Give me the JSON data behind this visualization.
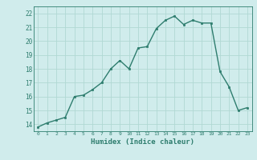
{
  "x": [
    0,
    1,
    2,
    3,
    4,
    5,
    6,
    7,
    8,
    9,
    10,
    11,
    12,
    13,
    14,
    15,
    16,
    17,
    18,
    19,
    20,
    21,
    22,
    23
  ],
  "y": [
    13.8,
    14.1,
    14.3,
    14.5,
    16.0,
    16.1,
    16.5,
    17.0,
    18.0,
    18.6,
    18.0,
    19.5,
    19.6,
    20.9,
    21.5,
    21.8,
    21.2,
    21.5,
    21.3,
    21.3,
    17.8,
    16.7,
    15.0,
    15.2
  ],
  "line_color": "#2e7d6e",
  "marker_color": "#2e7d6e",
  "bg_color": "#d0ecec",
  "grid_color": "#b0d8d4",
  "xlabel": "Humidex (Indice chaleur)",
  "xlim": [
    -0.5,
    23.5
  ],
  "ylim": [
    13.5,
    22.5
  ],
  "yticks": [
    14,
    15,
    16,
    17,
    18,
    19,
    20,
    21,
    22
  ],
  "xticks": [
    0,
    1,
    2,
    3,
    4,
    5,
    6,
    7,
    8,
    9,
    10,
    11,
    12,
    13,
    14,
    15,
    16,
    17,
    18,
    19,
    20,
    21,
    22,
    23
  ]
}
